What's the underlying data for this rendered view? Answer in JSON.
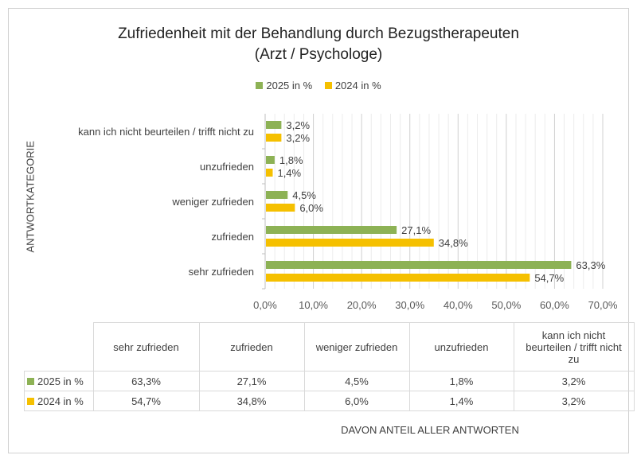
{
  "chart_data": {
    "type": "bar",
    "orientation": "horizontal",
    "title": "Zufriedenheit mit der Behandlung durch Bezugstherapeuten",
    "subtitle": "(Arzt / Psychologe)",
    "ylabel": "ANTWORTKATEGORIE",
    "xlabel": "DAVON ANTEIL ALLER ANTWORTEN",
    "categories": [
      "sehr zufrieden",
      "zufrieden",
      "weniger zufrieden",
      "unzufrieden",
      "kann ich nicht beurteilen / trifft nicht zu"
    ],
    "table_headers": [
      "sehr zufrieden",
      "zufrieden",
      "weniger zufrieden",
      "unzufrieden",
      "kann ich nicht beurteilen / trifft nicht zu"
    ],
    "series": [
      {
        "name": "2025 in %",
        "color": "#8db255",
        "values": [
          63.3,
          27.1,
          4.5,
          1.8,
          3.2
        ],
        "labels": [
          "63,3%",
          "27,1%",
          "4,5%",
          "1,8%",
          "3,2%"
        ]
      },
      {
        "name": "2024 in %",
        "color": "#f5c000",
        "values": [
          54.7,
          34.8,
          6.0,
          1.4,
          3.2
        ],
        "labels": [
          "54,7%",
          "34,8%",
          "6,0%",
          "1,4%",
          "3,2%"
        ]
      }
    ],
    "xlim": [
      0,
      70
    ],
    "xticks": [
      "0,0%",
      "10,0%",
      "20,0%",
      "30,0%",
      "40,0%",
      "50,0%",
      "60,0%",
      "70,0%"
    ],
    "grid": true,
    "legend": "top"
  }
}
